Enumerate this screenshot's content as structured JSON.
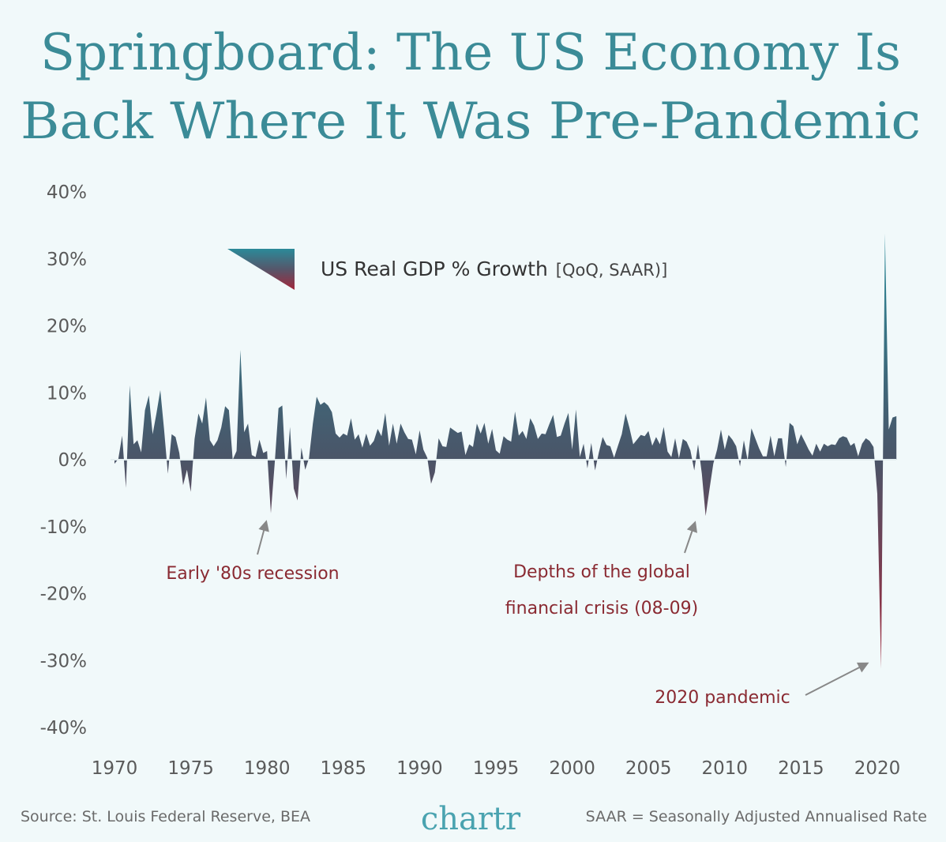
{
  "title_line1": "Springboard: The US Economy Is",
  "title_line2": "Back Where It Was Pre-Pandemic",
  "footer": {
    "source": "Source: St. Louis Federal Reserve, BEA",
    "logo": "chartr",
    "note": "SAAR = Seasonally Adjusted Annualised Rate"
  },
  "colors": {
    "title": "#3b8b97",
    "positive": "#2b8a99",
    "zero": "#4a5568",
    "negative": "#a3263a",
    "annotation": "#8a2a32",
    "arrow": "#888888"
  },
  "chart_data": {
    "type": "area",
    "legend": {
      "label": "US Real GDP % Growth",
      "sublabel": "[QoQ, SAAR)]",
      "placement": "top-left"
    },
    "ylim": [
      -40,
      40
    ],
    "yticks": [
      40,
      30,
      20,
      10,
      0,
      -10,
      -20,
      -30,
      -40
    ],
    "ytick_labels": [
      "40%",
      "30%",
      "20%",
      "10%",
      "0%",
      "-10%",
      "-20%",
      "-30%",
      "-40%"
    ],
    "xticks": [
      "1970",
      "1975",
      "1980",
      "1985",
      "1990",
      "1995",
      "2000",
      "2005",
      "2010",
      "2015",
      "2020"
    ],
    "grid": false,
    "annotations": [
      {
        "text": [
          "Early '80s recession"
        ],
        "target": "1980-Q2"
      },
      {
        "text": [
          "Depths of the global",
          "financial crisis (08-09)"
        ],
        "target": "2008-Q4"
      },
      {
        "text": [
          "2020 pandemic"
        ],
        "target": "2020-Q2"
      }
    ],
    "quarterly_values": {
      "1970": [
        -0.6,
        0.1,
        3.6,
        -4.2
      ],
      "1971": [
        11.1,
        2.3,
        2.9,
        1.1
      ],
      "1972": [
        7.4,
        9.6,
        3.8,
        6.9
      ],
      "1973": [
        10.4,
        4.5,
        -2.1,
        3.8
      ],
      "1974": [
        3.4,
        1.0,
        -3.8,
        -1.5
      ],
      "1975": [
        -4.8,
        3.1,
        6.9,
        5.4
      ],
      "1976": [
        9.3,
        2.9,
        2.0,
        2.9
      ],
      "1977": [
        4.8,
        8.0,
        7.4,
        0.0
      ],
      "1978": [
        1.3,
        16.4,
        4.1,
        5.4
      ],
      "1979": [
        0.7,
        0.4,
        3.0,
        1.0
      ],
      "1980": [
        1.3,
        -8.0,
        -0.5,
        7.7
      ],
      "1981": [
        8.1,
        -2.9,
        4.9,
        -4.3
      ],
      "1982": [
        -6.1,
        1.8,
        -1.5,
        0.2
      ],
      "1983": [
        5.4,
        9.4,
        8.2,
        8.6
      ],
      "1984": [
        8.1,
        7.1,
        3.9,
        3.3
      ],
      "1985": [
        3.9,
        3.6,
        6.2,
        3.0
      ],
      "1986": [
        3.8,
        1.8,
        3.9,
        2.1
      ],
      "1987": [
        2.8,
        4.6,
        3.5,
        7.0
      ],
      "1988": [
        2.1,
        5.4,
        2.4,
        5.4
      ],
      "1989": [
        4.1,
        3.1,
        3.0,
        0.8
      ],
      "1990": [
        4.4,
        1.5,
        0.3,
        -3.6
      ],
      "1991": [
        -1.9,
        3.2,
        2.0,
        1.9
      ],
      "1992": [
        4.8,
        4.4,
        4.0,
        4.2
      ],
      "1993": [
        0.7,
        2.3,
        1.9,
        5.4
      ],
      "1994": [
        3.9,
        5.5,
        2.4,
        4.6
      ],
      "1995": [
        1.4,
        0.9,
        3.5,
        3.0
      ],
      "1996": [
        2.7,
        7.2,
        3.6,
        4.3
      ],
      "1997": [
        3.1,
        6.2,
        5.1,
        3.1
      ],
      "1998": [
        3.9,
        3.8,
        5.3,
        6.7
      ],
      "1999": [
        3.4,
        3.6,
        5.4,
        7.0
      ],
      "2000": [
        1.5,
        7.5,
        0.4,
        2.4
      ],
      "2001": [
        -1.3,
        2.5,
        -1.6,
        1.1
      ],
      "2002": [
        3.4,
        2.2,
        2.0,
        0.3
      ],
      "2003": [
        2.1,
        3.8,
        6.9,
        4.8
      ],
      "2004": [
        2.3,
        3.0,
        3.7,
        3.5
      ],
      "2005": [
        4.3,
        2.1,
        3.4,
        2.3
      ],
      "2006": [
        4.9,
        1.2,
        0.4,
        3.2
      ],
      "2007": [
        0.2,
        3.1,
        2.7,
        1.4
      ],
      "2008": [
        -1.6,
        2.3,
        -2.1,
        -8.4
      ],
      "2009": [
        -4.4,
        -0.6,
        1.5,
        4.5
      ],
      "2010": [
        1.5,
        3.7,
        3.0,
        2.0
      ],
      "2011": [
        -1.0,
        2.9,
        -0.1,
        4.7
      ],
      "2012": [
        3.2,
        1.7,
        0.5,
        0.5
      ],
      "2013": [
        3.6,
        0.5,
        3.2,
        3.2
      ],
      "2014": [
        -1.1,
        5.5,
        5.0,
        2.3
      ],
      "2015": [
        3.8,
        2.7,
        1.5,
        0.6
      ],
      "2016": [
        2.4,
        1.2,
        2.4,
        2.0
      ],
      "2017": [
        2.3,
        2.2,
        3.2,
        3.5
      ],
      "2018": [
        3.3,
        2.1,
        2.5,
        0.5
      ],
      "2019": [
        2.4,
        3.2,
        2.8,
        1.9
      ],
      "2020": [
        -5.1,
        -31.2,
        33.8,
        4.5
      ],
      "2021": [
        6.3,
        6.5
      ]
    }
  }
}
